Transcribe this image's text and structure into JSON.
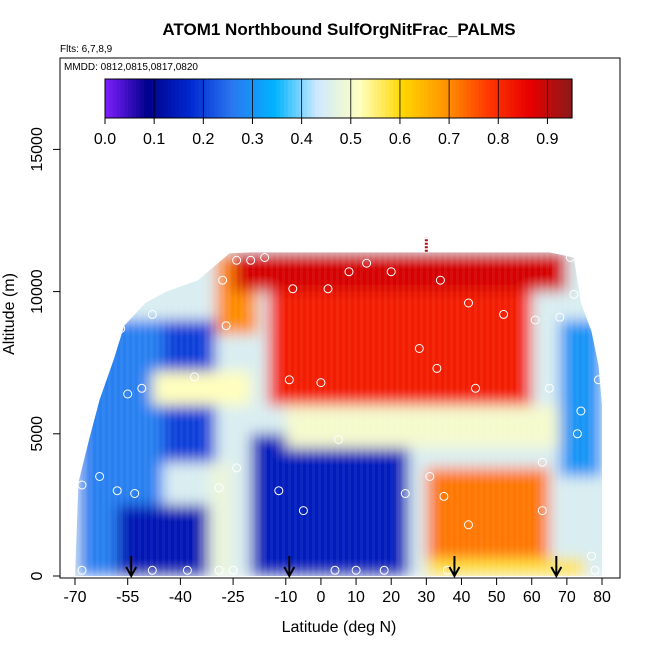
{
  "chart_data": {
    "type": "heatmap",
    "title": "ATOM1 Northbound SulfOrgNitFrac_PALMS",
    "annotations": [
      "Flts: 6,7,8,9",
      "MMDD: 0812,0815,0817,0820"
    ],
    "xlabel": "Latitude (deg N)",
    "ylabel": "Altitude (m)",
    "xlim": [
      -70,
      82
    ],
    "ylim": [
      0,
      18000
    ],
    "x_ticks": [
      -70,
      -55,
      -40,
      -25,
      -10,
      0,
      10,
      20,
      30,
      40,
      50,
      60,
      70,
      80
    ],
    "x_tick_labels": [
      "-70",
      "-55",
      "-40",
      "-25",
      "-10",
      "0",
      "10",
      "20",
      "30",
      "40",
      "50",
      "60",
      "70",
      "80"
    ],
    "y_ticks": [
      0,
      5000,
      10000,
      15000
    ],
    "y_tick_labels": [
      "0",
      "5000",
      "10000",
      "15000"
    ],
    "colorbar": {
      "range": [
        0,
        0.95
      ],
      "ticks": [
        0.0,
        0.1,
        0.2,
        0.3,
        0.4,
        0.5,
        0.6,
        0.7,
        0.8,
        0.9
      ],
      "tick_labels": [
        "0.0",
        "0.1",
        "0.2",
        "0.3",
        "0.4",
        "0.5",
        "0.6",
        "0.7",
        "0.8",
        "0.9"
      ],
      "colors": [
        "#7f1fff",
        "#00008b",
        "#0028d0",
        "#2a78f0",
        "#00b4ff",
        "#cfe9ff",
        "#ffffc0",
        "#ffd700",
        "#ff9600",
        "#ff3a00",
        "#e80000",
        "#8b1a1a"
      ]
    },
    "regions": [
      {
        "name": "far-south-blue",
        "lat": [
          -69,
          -45
        ],
        "alt": [
          0,
          9000
        ],
        "value": 0.27
      },
      {
        "name": "southern-deep-blue",
        "lat": [
          -58,
          -28
        ],
        "alt": [
          0,
          2500
        ],
        "value": 0.14
      },
      {
        "name": "southern-mid-blue",
        "lat": [
          -45,
          -30
        ],
        "alt": [
          4000,
          9000
        ],
        "value": 0.2
      },
      {
        "name": "pale-band-south",
        "lat": [
          -48,
          -20
        ],
        "alt": [
          6000,
          7200
        ],
        "value": 0.52
      },
      {
        "name": "pale-column-south",
        "lat": [
          -32,
          -25
        ],
        "alt": [
          0,
          4000
        ],
        "value": 0.48
      },
      {
        "name": "upper-south-orange",
        "lat": [
          -30,
          -18
        ],
        "alt": [
          8500,
          11300
        ],
        "value": 0.7
      },
      {
        "name": "tropical-deep-purple",
        "lat": [
          -5,
          15
        ],
        "alt": [
          0,
          4500
        ],
        "value": 0.05
      },
      {
        "name": "tropical-blue",
        "lat": [
          -20,
          25
        ],
        "alt": [
          0,
          5000
        ],
        "value": 0.15
      },
      {
        "name": "tropical-upper-red",
        "lat": [
          -15,
          60
        ],
        "alt": [
          6000,
          11300
        ],
        "value": 0.82
      },
      {
        "name": "top-red-band",
        "lat": [
          -25,
          70
        ],
        "alt": [
          10000,
          11400
        ],
        "value": 0.88
      },
      {
        "name": "pale-arch",
        "lat": [
          -10,
          70
        ],
        "alt": [
          4500,
          6000
        ],
        "value": 0.5
      },
      {
        "name": "northern-red-layer",
        "lat": [
          34,
          62
        ],
        "alt": [
          2000,
          3000
        ],
        "value": 0.83
      },
      {
        "name": "northern-orange",
        "lat": [
          30,
          65
        ],
        "alt": [
          600,
          3800
        ],
        "value": 0.72
      },
      {
        "name": "northern-yellow-surface",
        "lat": [
          30,
          75
        ],
        "alt": [
          0,
          600
        ],
        "value": 0.58
      },
      {
        "name": "arctic-blue",
        "lat": [
          68,
          80
        ],
        "alt": [
          3500,
          9000
        ],
        "value": 0.3
      }
    ],
    "sample_points": [
      {
        "lat": -68,
        "alt": 200
      },
      {
        "lat": -68,
        "alt": 3200
      },
      {
        "lat": -63,
        "alt": 3500
      },
      {
        "lat": -58,
        "alt": 3000
      },
      {
        "lat": -53,
        "alt": 2900
      },
      {
        "lat": -55,
        "alt": 6400
      },
      {
        "lat": -51,
        "alt": 6600
      },
      {
        "lat": -57,
        "alt": 8700
      },
      {
        "lat": -48,
        "alt": 9200
      },
      {
        "lat": -36,
        "alt": 7000
      },
      {
        "lat": -48,
        "alt": 200
      },
      {
        "lat": -38,
        "alt": 200
      },
      {
        "lat": -29,
        "alt": 200
      },
      {
        "lat": -25,
        "alt": 200
      },
      {
        "lat": -29,
        "alt": 3100
      },
      {
        "lat": -24,
        "alt": 3800
      },
      {
        "lat": -28,
        "alt": 10400
      },
      {
        "lat": -27,
        "alt": 8800
      },
      {
        "lat": -24,
        "alt": 11100
      },
      {
        "lat": -20,
        "alt": 11100
      },
      {
        "lat": -16,
        "alt": 11200
      },
      {
        "lat": -8,
        "alt": 10100
      },
      {
        "lat": -9,
        "alt": 6900
      },
      {
        "lat": -12,
        "alt": 3000
      },
      {
        "lat": -5,
        "alt": 2300
      },
      {
        "lat": 2,
        "alt": 10100
      },
      {
        "lat": 8,
        "alt": 10700
      },
      {
        "lat": 13,
        "alt": 11000
      },
      {
        "lat": 20,
        "alt": 10700
      },
      {
        "lat": 0,
        "alt": 6800
      },
      {
        "lat": 5,
        "alt": 4800
      },
      {
        "lat": 4,
        "alt": 200
      },
      {
        "lat": 10,
        "alt": 200
      },
      {
        "lat": 18,
        "alt": 200
      },
      {
        "lat": 28,
        "alt": 8000
      },
      {
        "lat": 33,
        "alt": 7300
      },
      {
        "lat": 34,
        "alt": 10400
      },
      {
        "lat": 42,
        "alt": 9600
      },
      {
        "lat": 52,
        "alt": 9200
      },
      {
        "lat": 61,
        "alt": 9000
      },
      {
        "lat": 44,
        "alt": 6600
      },
      {
        "lat": 24,
        "alt": 2900
      },
      {
        "lat": 31,
        "alt": 3500
      },
      {
        "lat": 35,
        "alt": 2800
      },
      {
        "lat": 42,
        "alt": 1800
      },
      {
        "lat": 63,
        "alt": 2300
      },
      {
        "lat": 63,
        "alt": 4000
      },
      {
        "lat": 65,
        "alt": 6600
      },
      {
        "lat": 71,
        "alt": 11200
      },
      {
        "lat": 72,
        "alt": 9900
      },
      {
        "lat": 68,
        "alt": 9100
      },
      {
        "lat": 73,
        "alt": 5000
      },
      {
        "lat": 74,
        "alt": 5800
      },
      {
        "lat": 79,
        "alt": 6900
      },
      {
        "lat": 77,
        "alt": 700
      },
      {
        "lat": 78,
        "alt": 200
      },
      {
        "lat": 36,
        "alt": 200
      }
    ],
    "arrows_lat": [
      -54,
      -9,
      38,
      67
    ],
    "column_top_marker": {
      "lat": 30,
      "alt": [
        11400,
        11900
      ]
    }
  }
}
